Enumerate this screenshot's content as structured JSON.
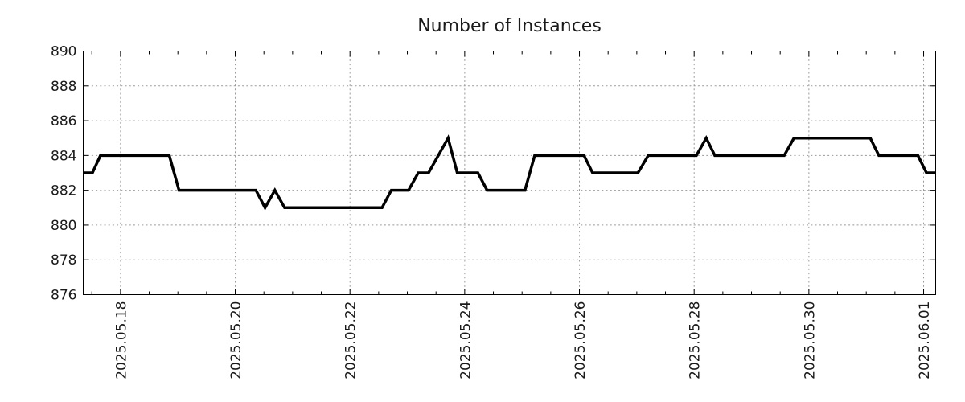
{
  "chart_data": {
    "type": "line",
    "title": "Number of Instances",
    "legend": false,
    "grid": true,
    "x_axis": {
      "unit": "date (day index in May 2025; 32 = 2025-06-01)",
      "range": [
        17.35,
        32.21
      ],
      "minor_tick_step": 0.5,
      "major_ticks": [
        {
          "t": 18,
          "label": "2025.05.18"
        },
        {
          "t": 20,
          "label": "2025.05.20"
        },
        {
          "t": 22,
          "label": "2025.05.22"
        },
        {
          "t": 24,
          "label": "2025.05.24"
        },
        {
          "t": 26,
          "label": "2025.05.26"
        },
        {
          "t": 28,
          "label": "2025.05.28"
        },
        {
          "t": 30,
          "label": "2025.05.30"
        },
        {
          "t": 32,
          "label": "2025.06.01"
        }
      ]
    },
    "y_axis": {
      "range": [
        876,
        890
      ],
      "tick_step": 2,
      "ticks": [
        876,
        878,
        880,
        882,
        884,
        886,
        888,
        890
      ]
    },
    "series": [
      {
        "name": "instances",
        "color": "#000000",
        "points": [
          [
            17.35,
            883
          ],
          [
            17.51,
            883
          ],
          [
            17.65,
            884
          ],
          [
            18.85,
            884
          ],
          [
            19.02,
            882
          ],
          [
            20.36,
            882
          ],
          [
            20.52,
            881
          ],
          [
            20.69,
            882
          ],
          [
            20.86,
            881
          ],
          [
            22.56,
            881
          ],
          [
            22.72,
            882
          ],
          [
            23.02,
            882
          ],
          [
            23.19,
            883
          ],
          [
            23.37,
            883
          ],
          [
            23.71,
            885
          ],
          [
            23.87,
            883
          ],
          [
            24.23,
            883
          ],
          [
            24.39,
            882
          ],
          [
            25.05,
            882
          ],
          [
            25.22,
            884
          ],
          [
            26.08,
            884
          ],
          [
            26.23,
            883
          ],
          [
            27.02,
            883
          ],
          [
            27.2,
            884
          ],
          [
            28.04,
            884
          ],
          [
            28.21,
            885
          ],
          [
            28.36,
            884
          ],
          [
            29.57,
            884
          ],
          [
            29.74,
            885
          ],
          [
            31.07,
            885
          ],
          [
            31.22,
            884
          ],
          [
            31.9,
            884
          ],
          [
            32.05,
            883
          ],
          [
            32.21,
            883
          ]
        ]
      }
    ]
  },
  "style": {
    "background": "#ffffff",
    "axis_color": "#000000",
    "grid_color": "#999999",
    "text_color": "#1a1a1a",
    "line_width": 3.5
  }
}
